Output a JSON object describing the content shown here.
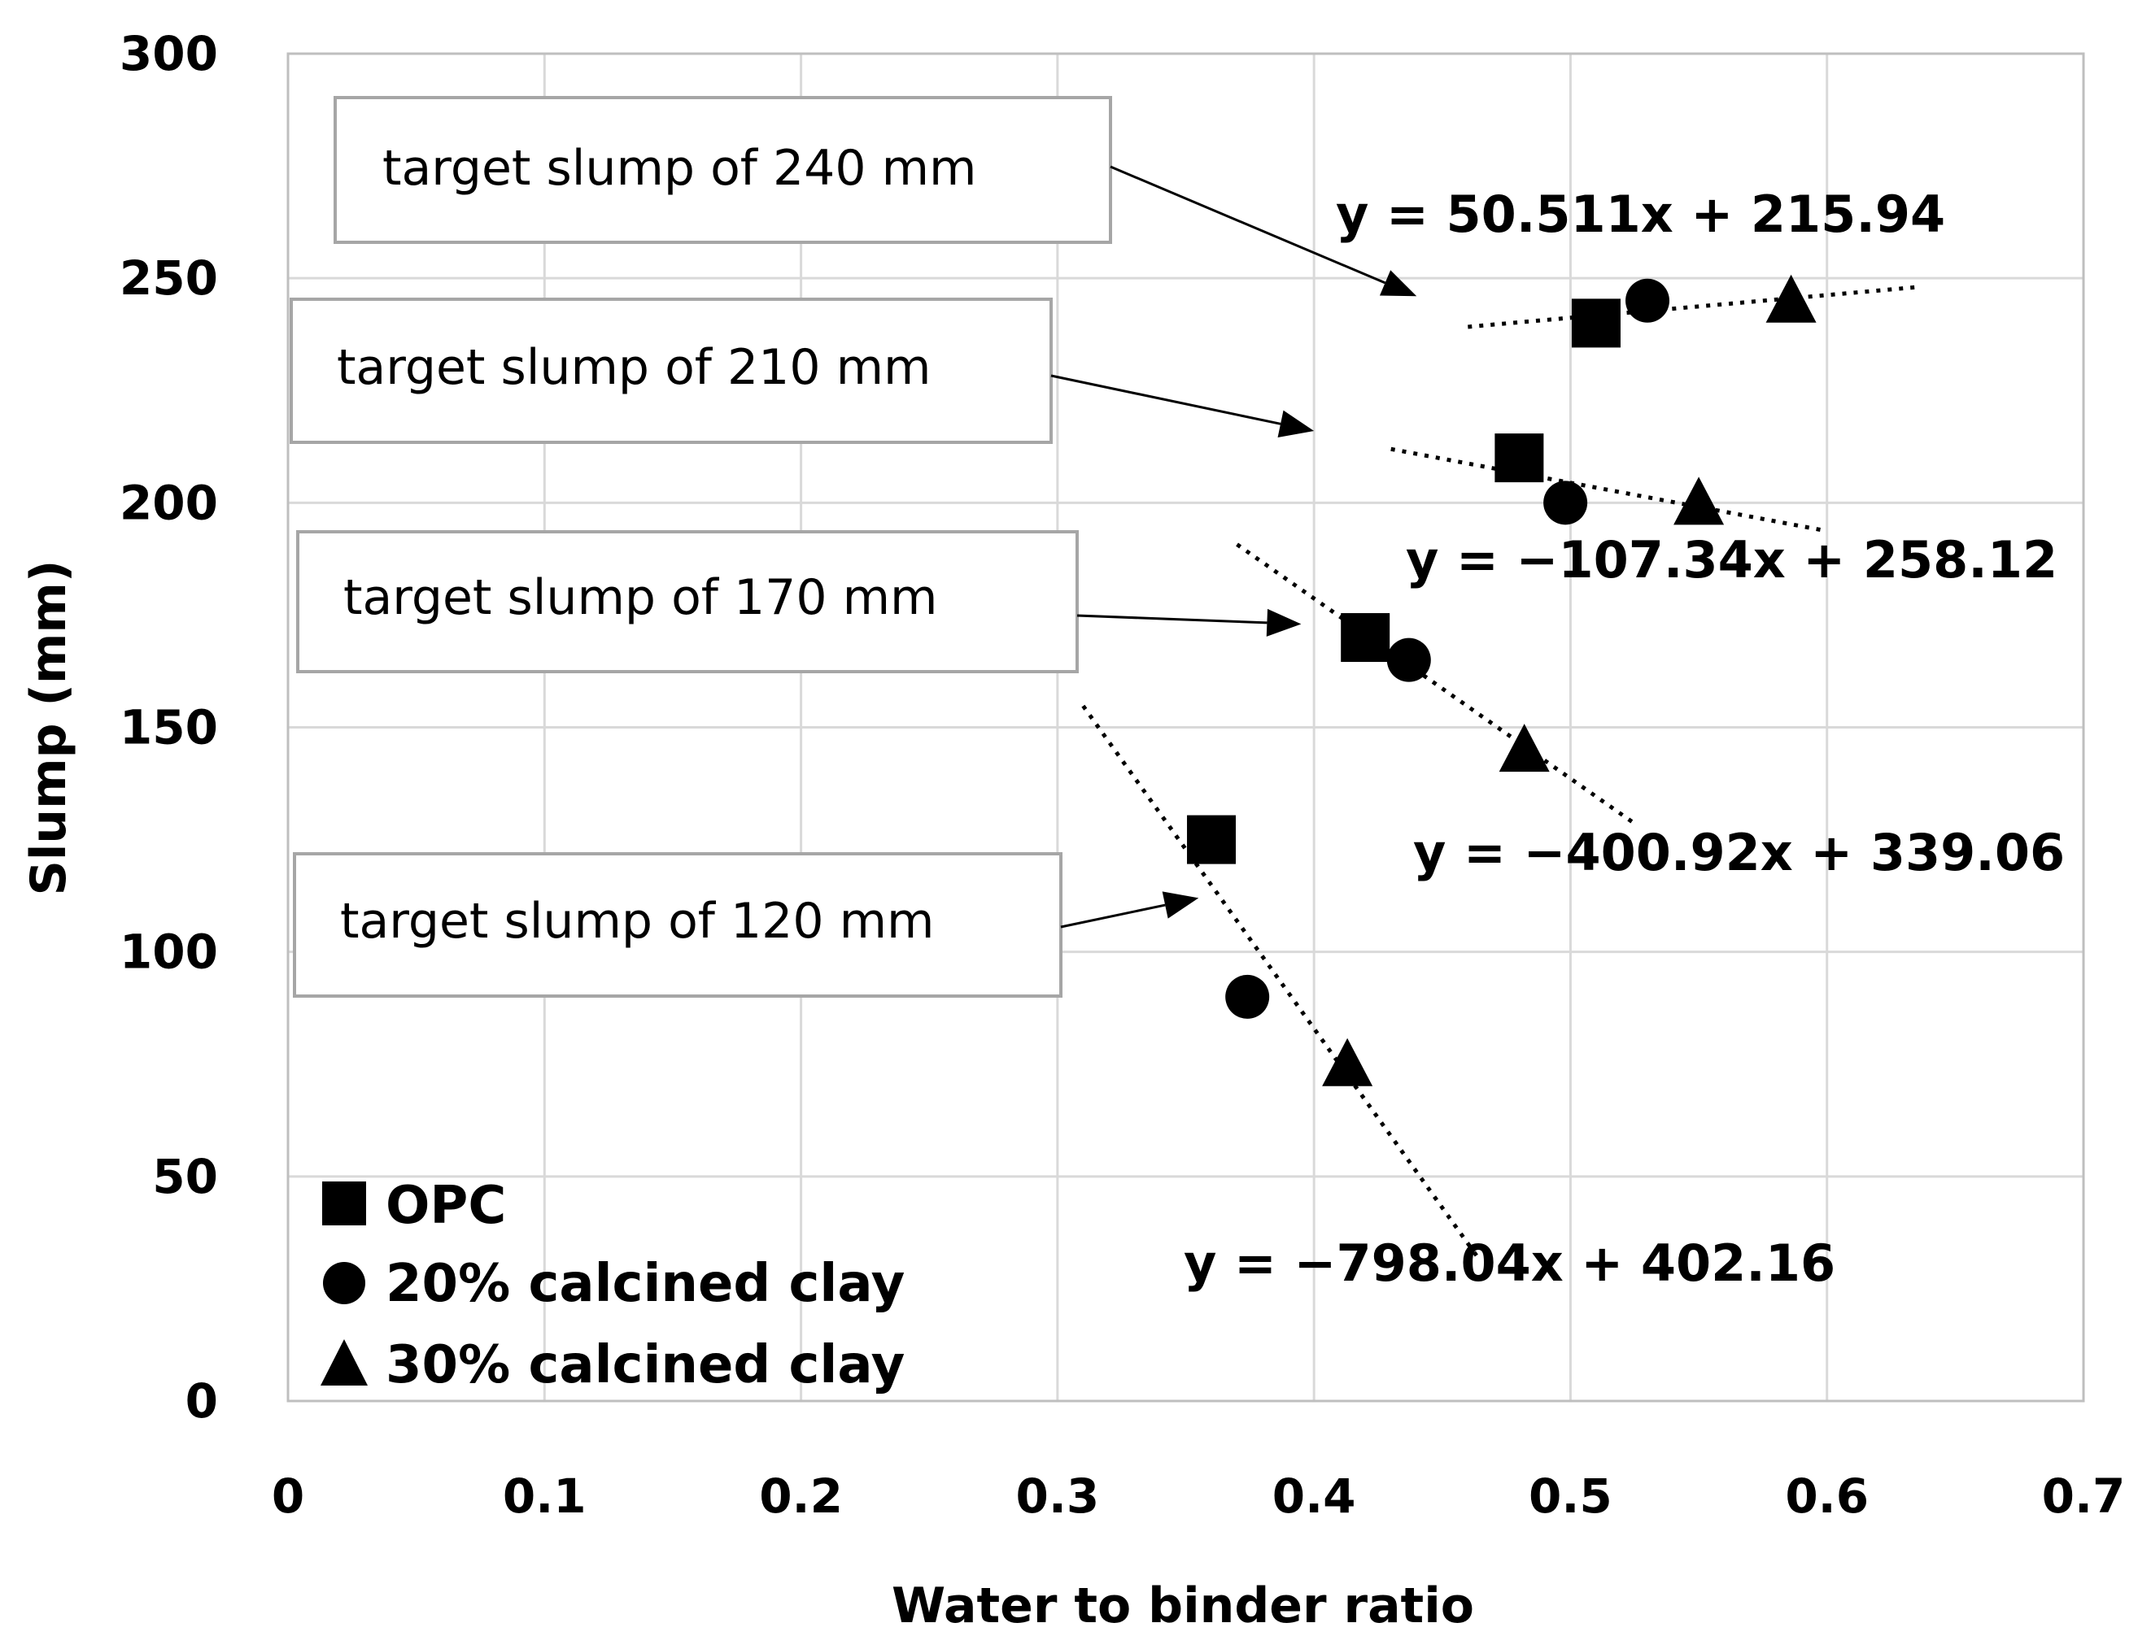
{
  "chart_data": {
    "type": "scatter",
    "title": "",
    "xlabel": "Water to binder ratio",
    "ylabel": "Slump (mm)",
    "xlim": [
      0,
      0.7
    ],
    "ylim": [
      0,
      300
    ],
    "xticks": [
      "0",
      "0.1",
      "0.2",
      "0.3",
      "0.4",
      "0.5",
      "0.6",
      "0.7"
    ],
    "yticks": [
      "0",
      "50",
      "100",
      "150",
      "200",
      "250",
      "300"
    ],
    "grid": true,
    "legend_position": "bottom-left",
    "series": [
      {
        "name": "OPC",
        "marker": "square",
        "points": [
          {
            "x": 0.36,
            "y": 125
          },
          {
            "x": 0.42,
            "y": 170
          },
          {
            "x": 0.48,
            "y": 210
          },
          {
            "x": 0.51,
            "y": 240
          }
        ]
      },
      {
        "name": "20% calcined clay",
        "marker": "circle",
        "points": [
          {
            "x": 0.374,
            "y": 90
          },
          {
            "x": 0.437,
            "y": 165
          },
          {
            "x": 0.498,
            "y": 200
          },
          {
            "x": 0.53,
            "y": 245
          }
        ]
      },
      {
        "name": "30% calcined clay",
        "marker": "triangle",
        "points": [
          {
            "x": 0.413,
            "y": 75
          },
          {
            "x": 0.482,
            "y": 145
          },
          {
            "x": 0.55,
            "y": 200
          },
          {
            "x": 0.586,
            "y": 245
          }
        ]
      }
    ],
    "trendlines": [
      {
        "equation": "y = 50.511x + 215.94",
        "slope": 50.511,
        "intercept": 215.94,
        "x_range": [
          0.46,
          0.635
        ]
      },
      {
        "equation": "y = −107.34x + 258.12",
        "slope": -107.34,
        "intercept": 258.12,
        "x_range": [
          0.43,
          0.6
        ]
      },
      {
        "equation": "y = −400.92x + 339.06",
        "slope": -400.92,
        "intercept": 339.06,
        "x_range": [
          0.37,
          0.525
        ]
      },
      {
        "equation": "y = −798.04x + 402.16",
        "slope": -798.04,
        "intercept": 402.16,
        "x_range": [
          0.31,
          0.465
        ]
      }
    ],
    "annotations": [
      {
        "text": "target slump of 240 mm",
        "arrow_target": {
          "x": 0.44,
          "y": 246
        }
      },
      {
        "text": "target slump of 210 mm",
        "arrow_target": {
          "x": 0.4,
          "y": 216
        }
      },
      {
        "text": "target slump of 170 mm",
        "arrow_target": {
          "x": 0.395,
          "y": 173
        }
      },
      {
        "text": "target slump of 120 mm",
        "arrow_target": {
          "x": 0.355,
          "y": 112
        }
      }
    ]
  },
  "colors": {
    "background": "#ffffff",
    "plot_border": "#bfbfbf",
    "gridline": "#d9d9d9",
    "marker": "#000000",
    "trendline": "#000000",
    "callout_border": "#a6a6a6",
    "text": "#000000"
  }
}
